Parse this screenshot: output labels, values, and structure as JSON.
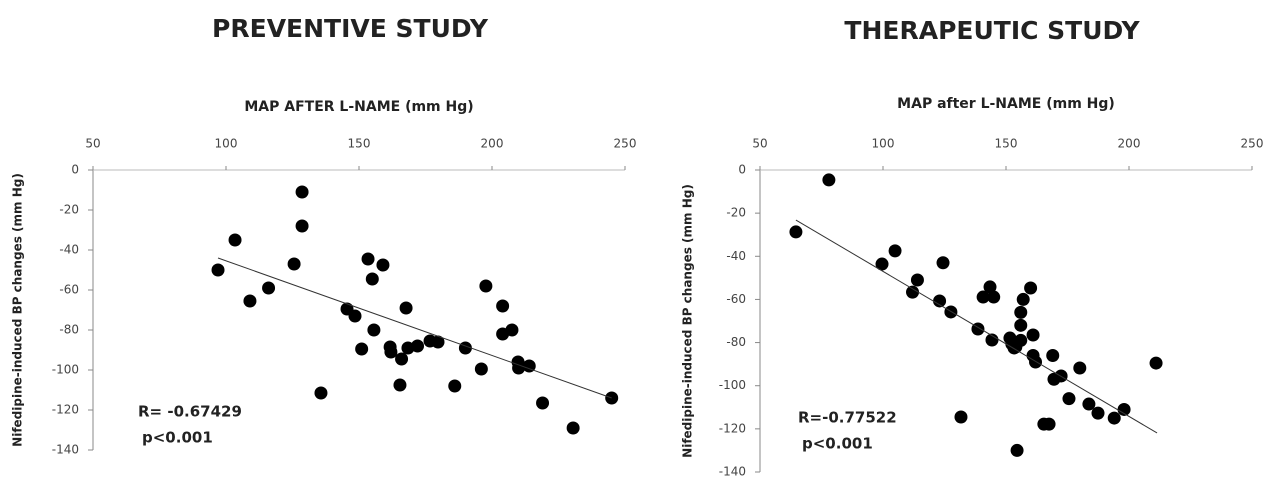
{
  "chart_data": [
    {
      "type": "scatter",
      "title": "PREVENTIVE STUDY",
      "xlabel": "MAP AFTER L-NAME (mm Hg)",
      "ylabel": "Nifedipine-induced  BP changes  (mm Hg)",
      "xlim": [
        50,
        250
      ],
      "xticks": [
        50,
        100,
        150,
        200,
        250
      ],
      "ylim": [
        -140,
        0
      ],
      "yticks": [
        0,
        -20,
        -40,
        -60,
        -80,
        -100,
        -120,
        -140
      ],
      "color": "#000000",
      "grid": false,
      "x": [
        97,
        103.4,
        109,
        116,
        125.6,
        128.6,
        128.6,
        135.7,
        145.5,
        148.5,
        151,
        153.4,
        155,
        155.6,
        159,
        161.7,
        162,
        165.4,
        166,
        167.7,
        168.4,
        172,
        176.7,
        179.7,
        186,
        190,
        196,
        197.7,
        204,
        204,
        207.5,
        209.8,
        210,
        214,
        219,
        230.5,
        245
      ],
      "values": [
        -50,
        -35,
        -65.5,
        -59,
        -47,
        -11,
        -28,
        -111.5,
        -69.5,
        -73,
        -89.5,
        -44.5,
        -54.5,
        -80,
        -47.5,
        -88.5,
        -91,
        -107.5,
        -94.5,
        -69,
        -89,
        -88,
        -85.5,
        -86,
        -108,
        -89,
        -99.5,
        -58,
        -68,
        -82,
        -80,
        -96,
        -99,
        -98,
        -116.5,
        -129,
        -114
      ],
      "trendline": {
        "x": [
          97,
          245
        ],
        "y": [
          -44,
          -114
        ]
      },
      "annotations": [
        "R= -0.67429",
        "p<0.001"
      ]
    },
    {
      "type": "scatter",
      "title": "THERAPEUTIC STUDY",
      "xlabel": "MAP after L-NAME (mm Hg)",
      "ylabel": "Nifedipine-induced  BP changes  (mm Hg)",
      "xlim": [
        50,
        250
      ],
      "xticks": [
        50,
        100,
        150,
        200,
        250
      ],
      "ylim": [
        -140,
        0
      ],
      "yticks": [
        0,
        -20,
        -40,
        -60,
        -80,
        -100,
        -120,
        -140
      ],
      "color": "#000000",
      "grid": false,
      "x": [
        64.6,
        78,
        99.6,
        104.9,
        112,
        114,
        123,
        124.4,
        127.6,
        131.7,
        138.6,
        140.7,
        143.5,
        145,
        144.3,
        151.6,
        152.4,
        153.3,
        154,
        154.5,
        156,
        156,
        156,
        157,
        160,
        161,
        161,
        162,
        165.4,
        167.5,
        169,
        169.5,
        172.4,
        175.6,
        180,
        183.7,
        187.4,
        194,
        198,
        211
      ],
      "values": [
        -28.7,
        -4.6,
        -43.6,
        -37.5,
        -56.6,
        -51,
        -60.7,
        -43,
        -65.8,
        -114.5,
        -73.7,
        -58.9,
        -54.2,
        -58.9,
        -78.8,
        -77.9,
        -80.7,
        -82.5,
        -82,
        -130,
        -72,
        -79,
        -66,
        -60,
        -54.7,
        -76.5,
        -86,
        -89,
        -117.8,
        -117.8,
        -86,
        -97,
        -95.5,
        -106,
        -91.8,
        -108.5,
        -112.7,
        -115,
        -111,
        -89.5
      ],
      "trendline": {
        "x": [
          64.6,
          211.4
        ],
        "y": [
          -23.2,
          -121.9
        ]
      },
      "annotations": [
        "R=-0.77522",
        "p<0.001"
      ]
    }
  ]
}
